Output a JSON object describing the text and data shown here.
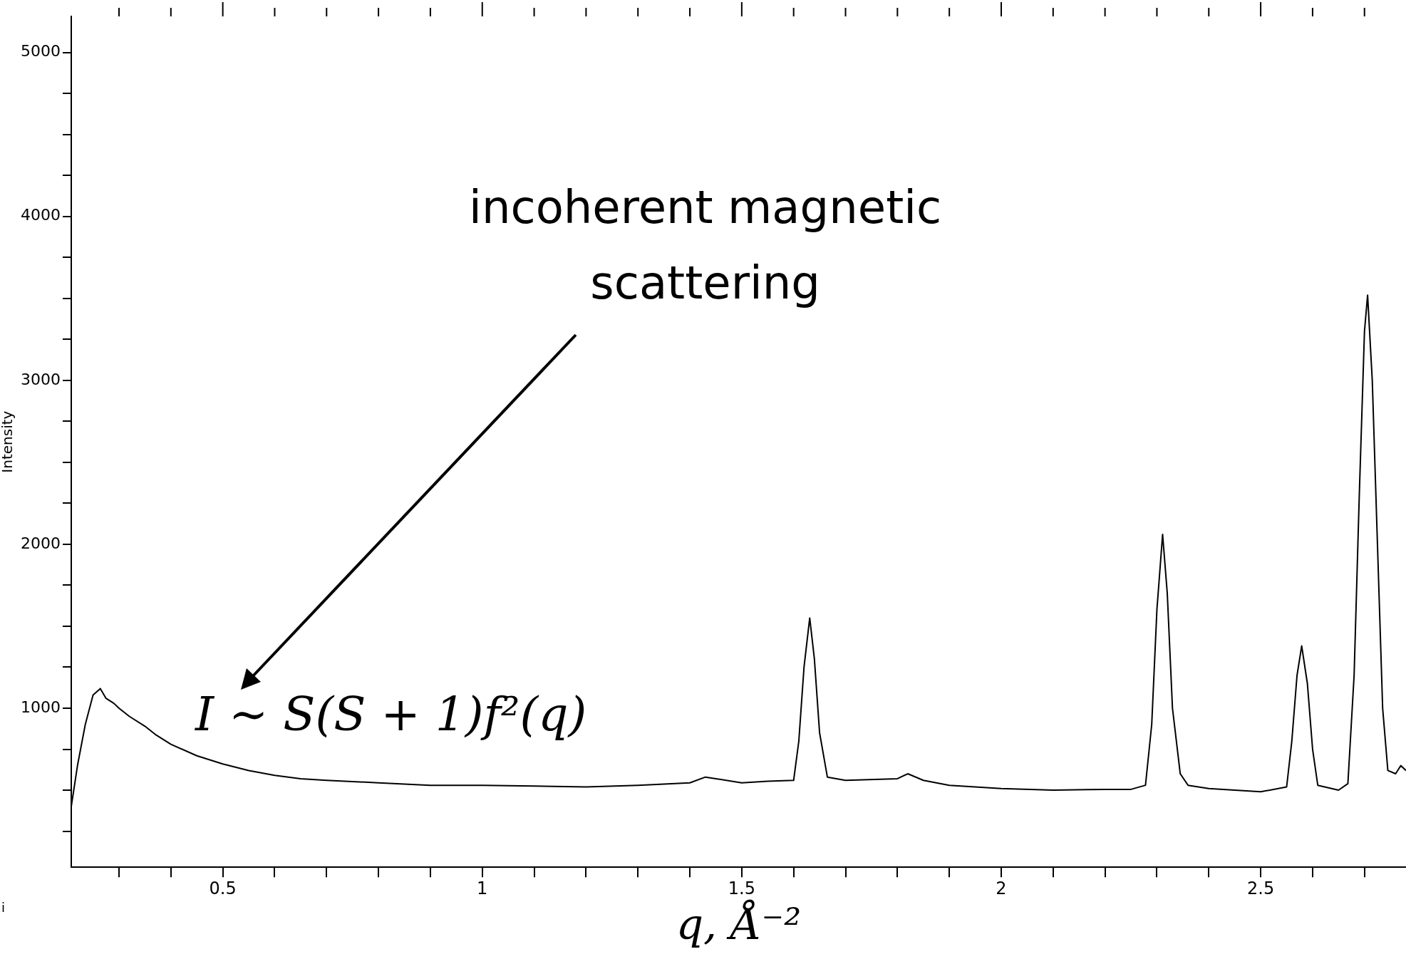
{
  "chart_data": {
    "type": "line",
    "xlabel": "q, Å⁻²",
    "ylabel": "Intensity",
    "xlim": [
      0.208,
      2.78
    ],
    "ylim": [
      30,
      5220
    ],
    "xticks": [
      {
        "value": 0.3,
        "label": null
      },
      {
        "value": 0.4,
        "label": null
      },
      0.5,
      {
        "value": 0.6,
        "label": null
      },
      {
        "value": 0.7,
        "label": null
      },
      {
        "value": 0.8,
        "label": null
      },
      {
        "value": 0.9,
        "label": null
      },
      1,
      {
        "value": 1.1,
        "label": null
      },
      {
        "value": 1.2,
        "label": null
      },
      {
        "value": 1.3,
        "label": null
      },
      {
        "value": 1.4,
        "label": null
      },
      1.5,
      {
        "value": 1.6,
        "label": null
      },
      {
        "value": 1.7,
        "label": null
      },
      {
        "value": 1.8,
        "label": null
      },
      {
        "value": 1.9,
        "label": null
      },
      2,
      {
        "value": 2.1,
        "label": null
      },
      {
        "value": 2.2,
        "label": null
      },
      {
        "value": 2.3,
        "label": null
      },
      {
        "value": 2.4,
        "label": null
      },
      2.5,
      {
        "value": 2.6,
        "label": null
      },
      {
        "value": 2.7,
        "label": null
      }
    ],
    "yticks": [
      {
        "value": 250,
        "label": null
      },
      {
        "value": 500,
        "label": null
      },
      {
        "value": 750,
        "label": null
      },
      1000,
      {
        "value": 1250,
        "label": null
      },
      {
        "value": 1500,
        "label": null
      },
      {
        "value": 1750,
        "label": null
      },
      2000,
      {
        "value": 2250,
        "label": null
      },
      {
        "value": 2500,
        "label": null
      },
      {
        "value": 2750,
        "label": null
      },
      3000,
      {
        "value": 3250,
        "label": null
      },
      {
        "value": 3500,
        "label": null
      },
      {
        "value": 3750,
        "label": null
      },
      4000,
      {
        "value": 4250,
        "label": null
      },
      {
        "value": 4500,
        "label": null
      },
      {
        "value": 4750,
        "label": null
      },
      5000
    ],
    "x": [
      0.208,
      0.22,
      0.235,
      0.25,
      0.264,
      0.275,
      0.29,
      0.3,
      0.32,
      0.35,
      0.37,
      0.4,
      0.45,
      0.5,
      0.55,
      0.6,
      0.65,
      0.7,
      0.8,
      0.9,
      1.0,
      1.1,
      1.2,
      1.3,
      1.4,
      1.43,
      1.5,
      1.55,
      1.6,
      1.61,
      1.62,
      1.631,
      1.64,
      1.65,
      1.665,
      1.7,
      1.8,
      1.82,
      1.85,
      1.9,
      2.0,
      2.1,
      2.2,
      2.25,
      2.278,
      2.29,
      2.3,
      2.311,
      2.32,
      2.33,
      2.345,
      2.36,
      2.4,
      2.45,
      2.5,
      2.55,
      2.56,
      2.57,
      2.579,
      2.59,
      2.6,
      2.61,
      2.65,
      2.668,
      2.68,
      2.69,
      2.7,
      2.706,
      2.715,
      2.725,
      2.735,
      2.745,
      2.76,
      2.77,
      2.78
    ],
    "series": [
      {
        "color": "#000000",
        "values": [
          400,
          650,
          900,
          1080,
          1120,
          1060,
          1030,
          1000,
          950,
          890,
          840,
          780,
          710,
          660,
          620,
          590,
          570,
          560,
          545,
          530,
          530,
          525,
          520,
          530,
          545,
          580,
          545,
          555,
          560,
          800,
          1250,
          1550,
          1300,
          850,
          580,
          560,
          570,
          600,
          560,
          530,
          510,
          500,
          505,
          505,
          530,
          900,
          1600,
          2060,
          1700,
          1000,
          600,
          530,
          510,
          500,
          490,
          520,
          800,
          1200,
          1380,
          1150,
          750,
          530,
          500,
          540,
          1200,
          2300,
          3300,
          3520,
          3000,
          2000,
          1000,
          620,
          600,
          650,
          620
        ]
      }
    ],
    "annotations": [
      "incoherent magnetic scattering",
      "I ∼ S(S + 1)f²(q)",
      "i"
    ]
  }
}
